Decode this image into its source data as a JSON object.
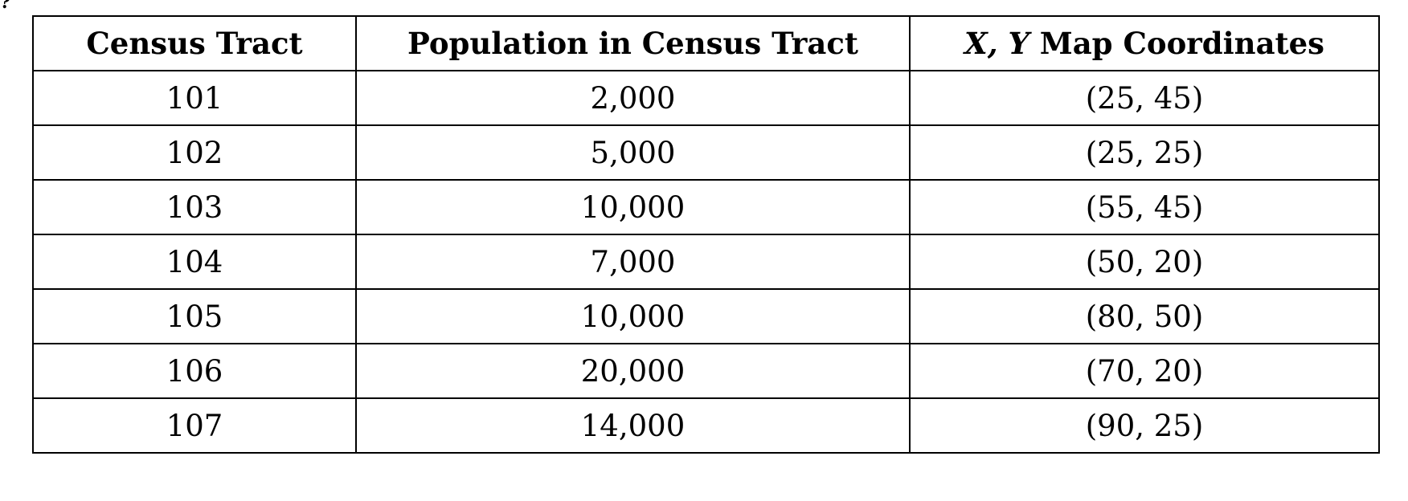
{
  "table": {
    "headers": {
      "tract": "Census Tract",
      "population": "Population in Census Tract",
      "coords_xy": "X, Y",
      "coords_suffix": " Map Coordinates"
    },
    "rows": [
      {
        "tract": "101",
        "population": "2,000",
        "coords": "(25, 45)"
      },
      {
        "tract": "102",
        "population": "5,000",
        "coords": "(25, 25)"
      },
      {
        "tract": "103",
        "population": "10,000",
        "coords": "(55, 45)"
      },
      {
        "tract": "104",
        "population": "7,000",
        "coords": "(50, 20)"
      },
      {
        "tract": "105",
        "population": "10,000",
        "coords": "(80, 50)"
      },
      {
        "tract": "106",
        "population": "20,000",
        "coords": "(70, 20)"
      },
      {
        "tract": "107",
        "population": "14,000",
        "coords": "(90, 25)"
      }
    ]
  }
}
